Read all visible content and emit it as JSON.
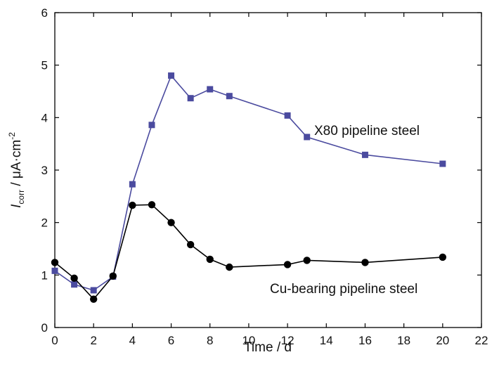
{
  "chart_data": {
    "type": "line",
    "xlabel": "Time / d",
    "ylabel": {
      "symbol": "I",
      "subscript": "corr",
      "unit": " / μA·cm",
      "exponent": "-2"
    },
    "xlim": [
      0,
      22
    ],
    "ylim": [
      0,
      6
    ],
    "xticks": [
      "0",
      "2",
      "4",
      "6",
      "8",
      "10",
      "12",
      "14",
      "16",
      "18",
      "20",
      "22"
    ],
    "yticks": [
      "0",
      "1",
      "2",
      "3",
      "4",
      "5",
      "6"
    ],
    "grid": false,
    "series": [
      {
        "name": "X80 pipeline steel",
        "marker": "square",
        "color": "#4b4b9f",
        "x": [
          0,
          1,
          2,
          3,
          4,
          5,
          6,
          7,
          8,
          9,
          12,
          13,
          16,
          20
        ],
        "y": [
          1.08,
          0.82,
          0.71,
          0.97,
          2.73,
          3.86,
          4.8,
          4.37,
          4.54,
          4.41,
          4.04,
          3.63,
          3.29,
          3.12
        ]
      },
      {
        "name": "Cu-bearing pipeline steel",
        "marker": "circle",
        "color": "#000000",
        "x": [
          0,
          1,
          2,
          3,
          4,
          5,
          6,
          7,
          8,
          9,
          12,
          13,
          16,
          20
        ],
        "y": [
          1.24,
          0.94,
          0.54,
          0.98,
          2.33,
          2.34,
          2.0,
          1.58,
          1.3,
          1.15,
          1.2,
          1.28,
          1.24,
          1.34
        ]
      }
    ]
  }
}
